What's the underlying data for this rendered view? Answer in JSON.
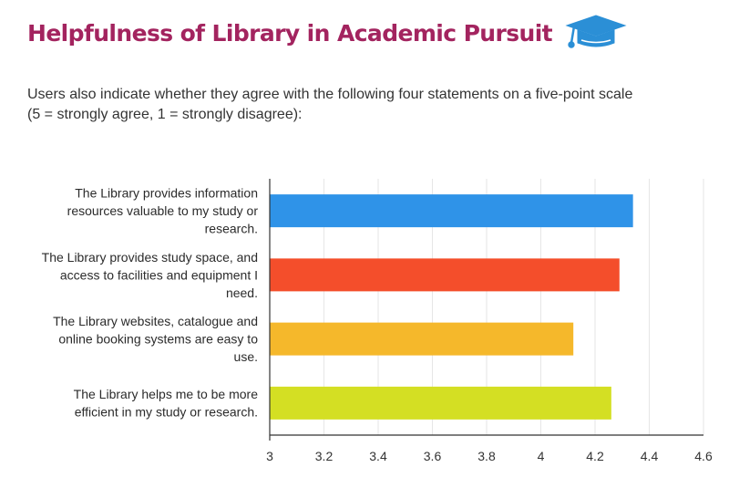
{
  "header": {
    "title": "Helpfulness of Library in Academic Pursuit",
    "icon": "graduation-cap-icon",
    "subtitle_line1": "Users also indicate whether they agree with the following four statements on a five-point scale",
    "subtitle_line2": "(5 = strongly agree, 1 = strongly disagree):"
  },
  "colors": {
    "title": "#a3245f",
    "icon": "#2b8fd6"
  },
  "chart_data": {
    "type": "bar",
    "orientation": "horizontal",
    "categories": [
      [
        "The Library provides information",
        "resources valuable to my study or",
        "research."
      ],
      [
        "The Library provides study space, and",
        "access to facilities and equipment I",
        "need."
      ],
      [
        "The Library websites, catalogue and",
        "online booking systems are easy to",
        "use."
      ],
      [
        "The Library helps me to be more",
        "efficient in my study or research."
      ]
    ],
    "values": [
      4.34,
      4.29,
      4.12,
      4.26
    ],
    "colors": [
      "#2f93e8",
      "#f44e2b",
      "#f5b82b",
      "#d4df23"
    ],
    "xlim": [
      3,
      4.6
    ],
    "xticks": [
      "3",
      "3.2",
      "3.4",
      "3.6",
      "3.8",
      "4",
      "4.2",
      "4.4",
      "4.6"
    ],
    "grid": true
  }
}
